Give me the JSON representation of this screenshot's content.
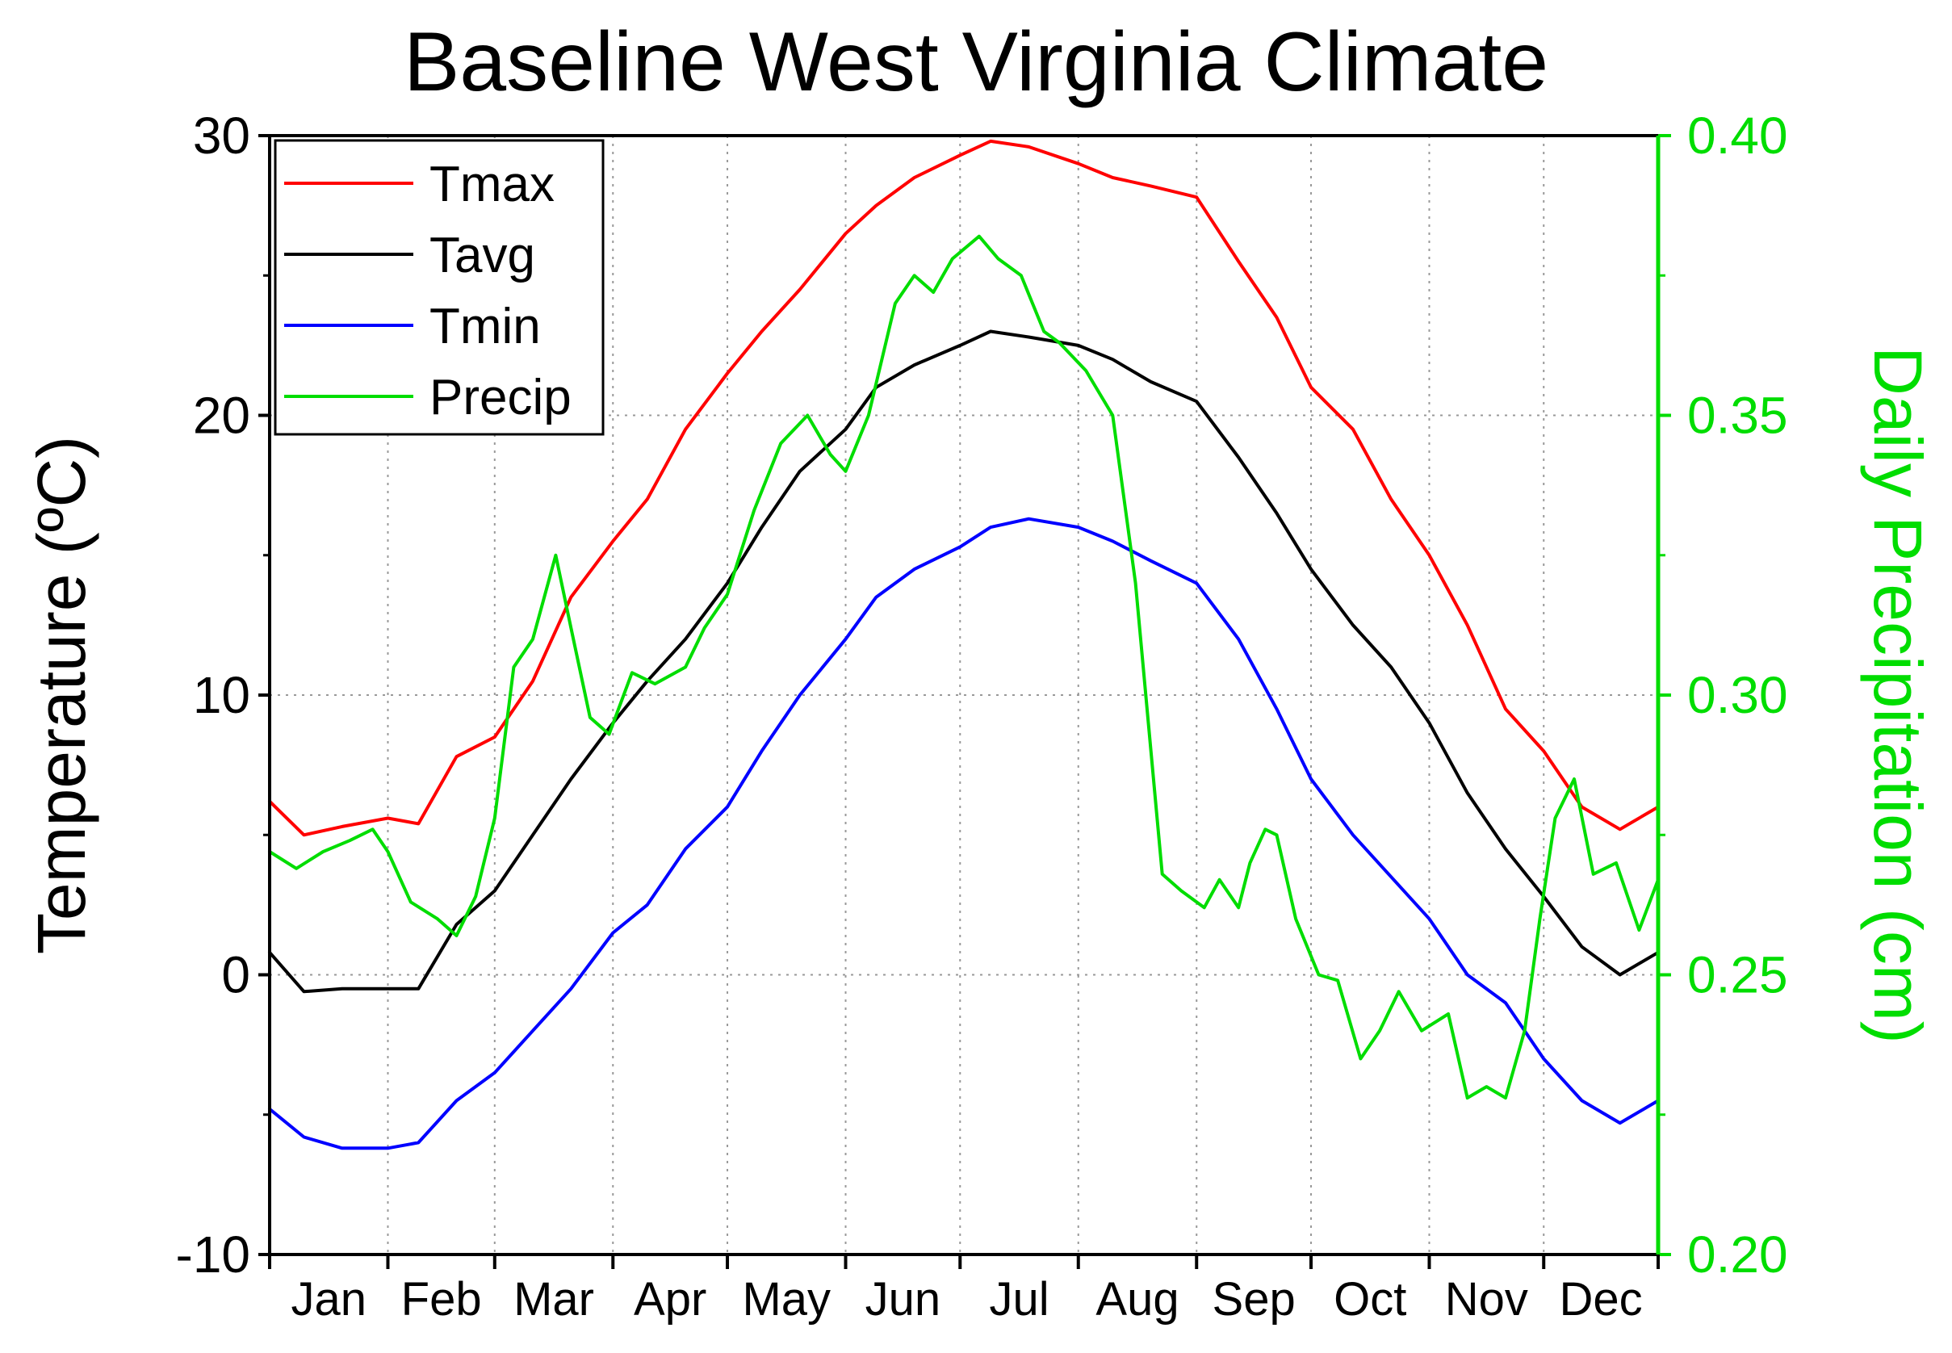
{
  "chart_data": {
    "type": "line",
    "title": "Baseline West Virginia Climate",
    "xlabel": "",
    "ylabel": "Temperature (ºC)",
    "y2label": "Daily Precipitation (cm)",
    "ylim": [
      -10,
      30
    ],
    "y2lim": [
      0.2,
      0.4
    ],
    "yticks": [
      -10,
      0,
      10,
      20,
      30
    ],
    "yticklabels": [
      "-10",
      "0",
      "10",
      "20",
      "30"
    ],
    "y2ticks": [
      0.2,
      0.25,
      0.3,
      0.35,
      0.4
    ],
    "y2ticklabels": [
      "0.20",
      "0.25",
      "0.30",
      "0.35",
      "0.40"
    ],
    "xlim": [
      1,
      365
    ],
    "month_boundaries": [
      1,
      32,
      60,
      91,
      121,
      152,
      182,
      213,
      244,
      274,
      305,
      335,
      365
    ],
    "categories": [
      "Jan",
      "Feb",
      "Mar",
      "Apr",
      "May",
      "Jun",
      "Jul",
      "Aug",
      "Sep",
      "Oct",
      "Nov",
      "Dec"
    ],
    "grid": true,
    "legend_position": "top-left",
    "colors": {
      "Tmax": "#ff0000",
      "Tavg": "#000000",
      "Tmin": "#0000ff",
      "Precip": "#00dd00",
      "axis2": "#00dd00"
    },
    "series": [
      {
        "name": "Tmax",
        "axis": "left",
        "x": [
          1,
          10,
          20,
          32,
          40,
          50,
          60,
          70,
          80,
          91,
          100,
          110,
          121,
          130,
          140,
          152,
          160,
          170,
          182,
          190,
          200,
          213,
          222,
          232,
          244,
          255,
          265,
          274,
          285,
          295,
          305,
          315,
          325,
          335,
          345,
          355,
          365
        ],
        "values": [
          6.2,
          5.0,
          5.3,
          5.6,
          5.4,
          7.8,
          8.5,
          10.5,
          13.5,
          15.5,
          17.0,
          19.5,
          21.5,
          23.0,
          24.5,
          26.5,
          27.5,
          28.5,
          29.3,
          29.8,
          29.6,
          29.0,
          28.5,
          28.2,
          27.8,
          25.5,
          23.5,
          21.0,
          19.5,
          17.0,
          15.0,
          12.5,
          9.5,
          8.0,
          6.0,
          5.2,
          6.0
        ]
      },
      {
        "name": "Tavg",
        "axis": "left",
        "x": [
          1,
          10,
          20,
          32,
          40,
          50,
          60,
          70,
          80,
          91,
          100,
          110,
          121,
          130,
          140,
          152,
          160,
          170,
          182,
          190,
          200,
          213,
          222,
          232,
          244,
          255,
          265,
          274,
          285,
          295,
          305,
          315,
          325,
          335,
          345,
          355,
          365
        ],
        "values": [
          0.8,
          -0.6,
          -0.5,
          -0.5,
          -0.5,
          1.8,
          3.0,
          5.0,
          7.0,
          9.0,
          10.5,
          12.0,
          14.0,
          16.0,
          18.0,
          19.5,
          21.0,
          21.8,
          22.5,
          23.0,
          22.8,
          22.5,
          22.0,
          21.2,
          20.5,
          18.5,
          16.5,
          14.5,
          12.5,
          11.0,
          9.0,
          6.5,
          4.5,
          2.8,
          1.0,
          0.0,
          0.8
        ]
      },
      {
        "name": "Tmin",
        "axis": "left",
        "x": [
          1,
          10,
          20,
          32,
          40,
          50,
          60,
          70,
          80,
          91,
          100,
          110,
          121,
          130,
          140,
          152,
          160,
          170,
          182,
          190,
          200,
          213,
          222,
          232,
          244,
          255,
          265,
          274,
          285,
          295,
          305,
          315,
          325,
          335,
          345,
          355,
          365
        ],
        "values": [
          -4.8,
          -5.8,
          -6.2,
          -6.2,
          -6.0,
          -4.5,
          -3.5,
          -2.0,
          -0.5,
          1.5,
          2.5,
          4.5,
          6.0,
          8.0,
          10.0,
          12.0,
          13.5,
          14.5,
          15.3,
          16.0,
          16.3,
          16.0,
          15.5,
          14.8,
          14.0,
          12.0,
          9.5,
          7.0,
          5.0,
          3.5,
          2.0,
          0.0,
          -1.0,
          -3.0,
          -4.5,
          -5.3,
          -4.5
        ]
      },
      {
        "name": "Precip",
        "axis": "right",
        "x": [
          1,
          8,
          15,
          22,
          28,
          32,
          38,
          45,
          50,
          55,
          60,
          65,
          70,
          76,
          80,
          85,
          90,
          96,
          102,
          110,
          115,
          121,
          128,
          135,
          142,
          148,
          152,
          158,
          165,
          170,
          175,
          180,
          187,
          192,
          198,
          204,
          208,
          215,
          222,
          228,
          235,
          240,
          246,
          250,
          255,
          258,
          262,
          265,
          270,
          276,
          281,
          287,
          292,
          297,
          303,
          310,
          315,
          320,
          325,
          330,
          334,
          338,
          343,
          348,
          354,
          360,
          365
        ],
        "values": [
          0.272,
          0.269,
          0.272,
          0.274,
          0.276,
          0.272,
          0.263,
          0.26,
          0.257,
          0.264,
          0.278,
          0.305,
          0.31,
          0.325,
          0.312,
          0.296,
          0.293,
          0.304,
          0.302,
          0.305,
          0.312,
          0.318,
          0.333,
          0.345,
          0.35,
          0.343,
          0.34,
          0.35,
          0.37,
          0.375,
          0.372,
          0.378,
          0.382,
          0.378,
          0.375,
          0.365,
          0.363,
          0.358,
          0.35,
          0.32,
          0.268,
          0.265,
          0.262,
          0.267,
          0.262,
          0.27,
          0.276,
          0.275,
          0.26,
          0.25,
          0.249,
          0.235,
          0.24,
          0.247,
          0.24,
          0.243,
          0.228,
          0.23,
          0.228,
          0.24,
          0.26,
          0.278,
          0.285,
          0.268,
          0.27,
          0.258,
          0.267
        ]
      }
    ]
  }
}
